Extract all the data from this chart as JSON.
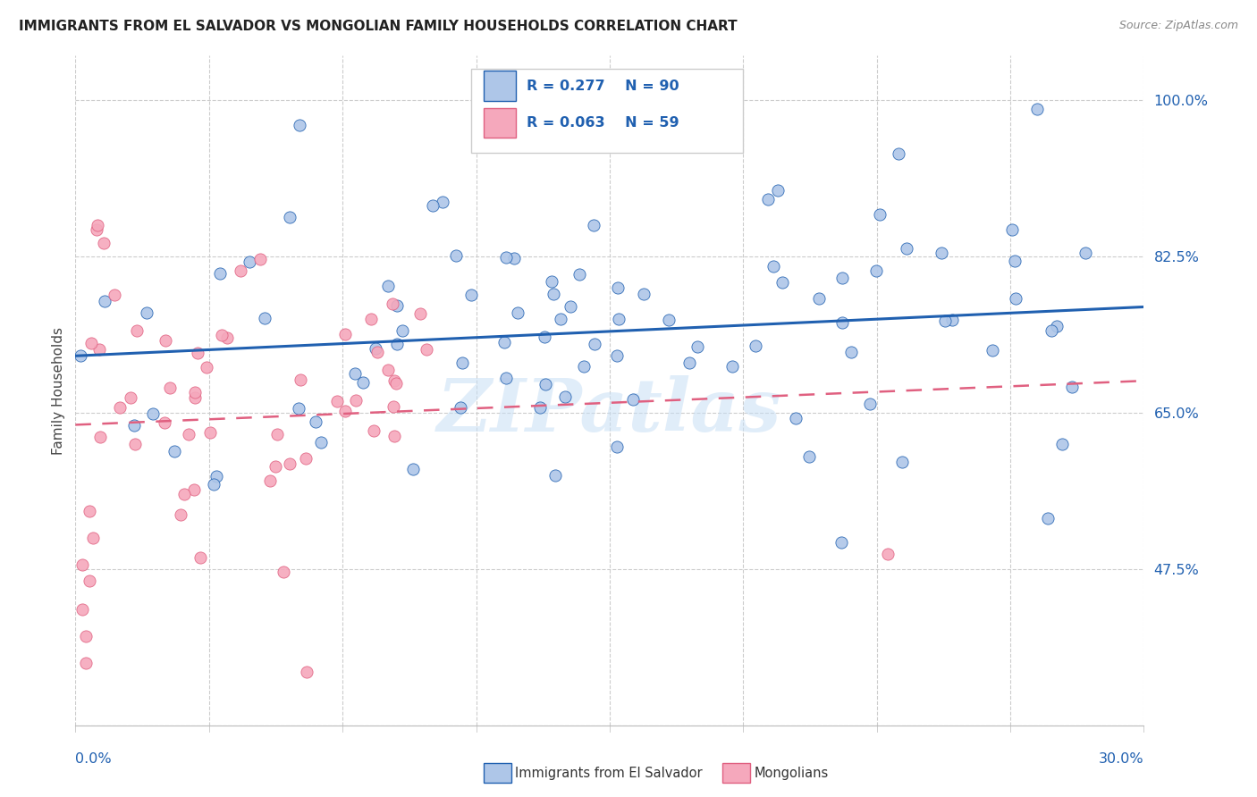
{
  "title": "IMMIGRANTS FROM EL SALVADOR VS MONGOLIAN FAMILY HOUSEHOLDS CORRELATION CHART",
  "source": "Source: ZipAtlas.com",
  "ylabel": "Family Households",
  "yticks": [
    0.475,
    0.65,
    0.825,
    1.0
  ],
  "ytick_labels": [
    "47.5%",
    "65.0%",
    "82.5%",
    "100.0%"
  ],
  "xlim": [
    0.0,
    0.3
  ],
  "ylim": [
    0.3,
    1.05
  ],
  "blue_color": "#aec6e8",
  "blue_line_color": "#2060b0",
  "pink_color": "#f5a8bc",
  "pink_line_color": "#e06080",
  "watermark": "ZIPatlas",
  "R_blue": 0.277,
  "N_blue": 90,
  "R_pink": 0.063,
  "N_pink": 59
}
